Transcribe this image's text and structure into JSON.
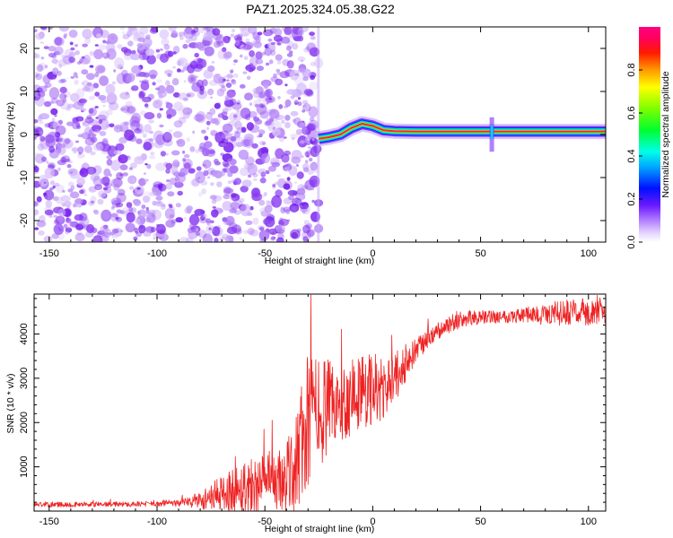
{
  "title": "PAZ1.2025.324.05.38.G22",
  "colors": {
    "snr_line": "#ee2222",
    "noise": "#8a3cf0",
    "signal_core": "#ff1e50",
    "frame": "#000000"
  },
  "chart_data": [
    {
      "type": "heatmap",
      "title": "PAZ1.2025.324.05.38.G22",
      "xlabel": "Height of straight line (km)",
      "ylabel": "Frequency (Hz)",
      "xlim": [
        -157,
        108
      ],
      "ylim": [
        -25,
        25
      ],
      "xticks": [
        -150,
        -100,
        -50,
        0,
        50,
        100
      ],
      "yticks": [
        -20,
        -10,
        0,
        10,
        20
      ],
      "colorbar": {
        "label": "Normalized spectral amplitude",
        "range": [
          0,
          1
        ],
        "ticks": [
          "0.0",
          "0.2",
          "0.4",
          "0.6",
          "0.8"
        ],
        "colormap": "gist_rainbow_reversed"
      },
      "noise_region_x": [
        -157,
        -25
      ],
      "signal_track": {
        "x": [
          -25,
          -20,
          -15,
          -10,
          -5,
          0,
          5,
          10,
          20,
          30,
          40,
          50,
          55,
          60,
          70,
          80,
          90,
          100,
          108
        ],
        "freq_hz": [
          -1.0,
          -0.6,
          0.0,
          1.5,
          2.5,
          2.0,
          1.0,
          0.8,
          0.7,
          0.7,
          0.7,
          0.7,
          0.7,
          0.7,
          0.7,
          0.7,
          0.7,
          0.7,
          0.7
        ]
      }
    },
    {
      "type": "line",
      "xlabel": "Height of straight line (km)",
      "ylabel": "SNR (10 * v/v)",
      "xlim": [
        -157,
        108
      ],
      "ylim": [
        0,
        4900
      ],
      "xticks": [
        -150,
        -100,
        -50,
        0,
        50,
        100
      ],
      "yticks": [
        1000,
        2000,
        3000,
        4000
      ],
      "gap_x": [
        -105,
        -103
      ],
      "series": [
        {
          "name": "SNR",
          "x": [
            -157,
            -140,
            -120,
            -105,
            -100,
            -90,
            -80,
            -70,
            -60,
            -50,
            -40,
            -35,
            -30,
            -25,
            -20,
            -15,
            -10,
            -5,
            0,
            5,
            10,
            15,
            20,
            25,
            30,
            35,
            40,
            50,
            60,
            70,
            80,
            90,
            100,
            108
          ],
          "y": [
            150,
            150,
            155,
            160,
            170,
            180,
            250,
            400,
            550,
            620,
            700,
            1200,
            2000,
            2300,
            2300,
            2400,
            2600,
            2700,
            2800,
            2700,
            3000,
            3300,
            3600,
            3850,
            4050,
            4200,
            4300,
            4380,
            4400,
            4420,
            4450,
            4480,
            4500,
            4450
          ],
          "amp": [
            60,
            60,
            60,
            60,
            70,
            80,
            200,
            400,
            650,
            700,
            800,
            1300,
            1600,
            1300,
            1100,
            900,
            900,
            900,
            900,
            700,
            600,
            400,
            300,
            250,
            200,
            200,
            200,
            150,
            150,
            180,
            250,
            300,
            300,
            250
          ]
        }
      ]
    }
  ]
}
